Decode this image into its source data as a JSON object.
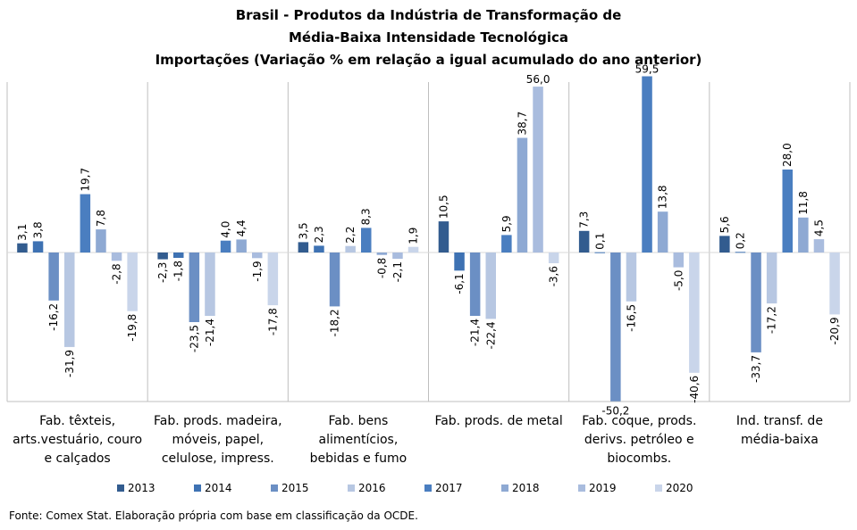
{
  "chart_data": {
    "type": "bar",
    "title_lines": [
      "Brasil - Produtos da Indústria de Transformação de",
      "Média-Baixa Intensidade Tecnológica",
      "Importações (Variação % em relação a igual acumulado do ano anterior)"
    ],
    "categories": [
      [
        "Fab. têxteis,",
        "arts.vestuário, couro",
        "e calçados"
      ],
      [
        "Fab. prods. madeira,",
        "móveis, papel,",
        "celulose, impress."
      ],
      [
        "Fab. bens",
        "alimentícios,",
        "bebidas e fumo"
      ],
      [
        "Fab. prods. de metal"
      ],
      [
        "Fab. coque, prods.",
        "derivs. petróleo e",
        "biocombs."
      ],
      [
        "Ind. transf. de",
        "média-baixa"
      ]
    ],
    "series": [
      {
        "name": "2013",
        "color": "#325C8F",
        "values": [
          3.1,
          -2.3,
          3.5,
          10.5,
          7.3,
          5.6
        ],
        "labels": [
          "3,1",
          "-2,3",
          "3,5",
          "10,5",
          "7,3",
          "5,6"
        ]
      },
      {
        "name": "2014",
        "color": "#3E72B3",
        "values": [
          3.8,
          -1.8,
          2.3,
          -6.1,
          0.1,
          0.2
        ],
        "labels": [
          "3,8",
          "-1,8",
          "2,3",
          "-6,1",
          "0,1",
          "0,2"
        ]
      },
      {
        "name": "2015",
        "color": "#6B8FC4",
        "values": [
          -16.2,
          -23.5,
          -18.2,
          -21.4,
          -50.2,
          -33.7
        ],
        "labels": [
          "-16,2",
          "-23,5",
          "-18,2",
          "-21,4",
          "-50,2",
          "-33,7"
        ]
      },
      {
        "name": "2016",
        "color": "#B7C7E2",
        "values": [
          -31.9,
          -21.4,
          2.2,
          -22.4,
          -16.5,
          -17.2
        ],
        "labels": [
          "-31,9",
          "-21,4",
          "2,2",
          "-22,4",
          "-16,5",
          "-17,2"
        ]
      },
      {
        "name": "2017",
        "color": "#4A7EC0",
        "values": [
          19.7,
          4.0,
          8.3,
          5.9,
          59.5,
          28.0
        ],
        "labels": [
          "19,7",
          "4,0",
          "8,3",
          "5,9",
          "59,5",
          "28,0"
        ]
      },
      {
        "name": "2018",
        "color": "#8EA9D3",
        "values": [
          7.8,
          4.4,
          -0.8,
          38.7,
          13.8,
          11.8
        ],
        "labels": [
          "7,8",
          "4,4",
          "-0,8",
          "38,7",
          "13,8",
          "11,8"
        ]
      },
      {
        "name": "2019",
        "color": "#A9BCDE",
        "values": [
          -2.8,
          -1.9,
          -2.1,
          56.0,
          -5.0,
          4.5
        ],
        "labels": [
          "-2,8",
          "-1,9",
          "-2,1",
          "56,0",
          "-5,0",
          "4,5"
        ]
      },
      {
        "name": "2020",
        "color": "#C9D5EA",
        "values": [
          -19.8,
          -17.8,
          1.9,
          -3.6,
          -40.6,
          -20.9
        ],
        "labels": [
          "-19,8",
          "-17,8",
          "1,9",
          "-3,6",
          "-40,6",
          "-20,9"
        ]
      }
    ],
    "ylim": [
      -60,
      64
    ],
    "grid": false,
    "legend_position": "bottom"
  },
  "source_text": "Fonte: Comex Stat. Elaboração própria com base em classificação da OCDE."
}
